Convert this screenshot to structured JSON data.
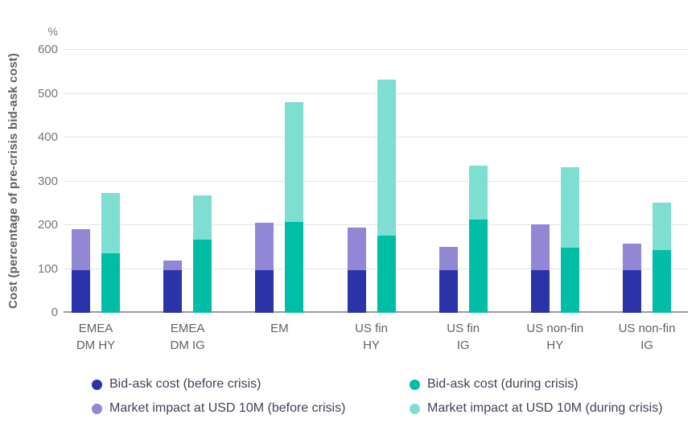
{
  "chart_data": {
    "type": "bar",
    "subtype": "grouped-stacked",
    "title": "",
    "ylabel": "Cost (percentage of pre-crisis bid-ask cost)",
    "xlabel": "",
    "unit": "%",
    "ylim": [
      0,
      600
    ],
    "yticks": [
      0,
      100,
      200,
      300,
      400,
      500,
      600
    ],
    "grid": "horizontal",
    "legend_position": "bottom",
    "categories": [
      {
        "label": "EMEA DM HY",
        "lines": [
          "EMEA",
          "DM HY"
        ]
      },
      {
        "label": "EMEA DM IG",
        "lines": [
          "EMEA",
          "DM IG"
        ]
      },
      {
        "label": "EM",
        "lines": [
          "EM"
        ]
      },
      {
        "label": "US fin HY",
        "lines": [
          "US fin",
          "HY"
        ]
      },
      {
        "label": "US fin IG",
        "lines": [
          "US fin",
          "IG"
        ]
      },
      {
        "label": "US non-fin HY",
        "lines": [
          "US non-fin",
          "HY"
        ]
      },
      {
        "label": "US non-fin IG",
        "lines": [
          "US non-fin",
          "IG"
        ]
      }
    ],
    "series": [
      {
        "name": "Bid-ask cost (before crisis)",
        "stack": "before",
        "color": "#2b33a8",
        "values": [
          98,
          98,
          98,
          97,
          98,
          97,
          97
        ]
      },
      {
        "name": "Market impact at USD 10M (before crisis)",
        "stack": "before",
        "color": "#9287d4",
        "values": [
          92,
          22,
          107,
          97,
          52,
          105,
          60
        ]
      },
      {
        "name": "Bid-ask cost (during crisis)",
        "stack": "during",
        "color": "#00bda6",
        "values": [
          135,
          167,
          208,
          177,
          213,
          148,
          144
        ]
      },
      {
        "name": "Market impact at USD 10M (during crisis)",
        "stack": "during",
        "color": "#7fded2",
        "values": [
          139,
          101,
          273,
          355,
          123,
          184,
          107
        ]
      }
    ],
    "stack_totals": {
      "before": [
        190,
        120,
        205,
        194,
        150,
        202,
        157
      ],
      "during": [
        274,
        268,
        481,
        532,
        336,
        332,
        251
      ]
    }
  },
  "legend": {
    "items": [
      {
        "label": "Bid-ask cost (before crisis)",
        "color": "#2b33a8",
        "col": 0,
        "row": 0
      },
      {
        "label": "Bid-ask cost (during crisis)",
        "color": "#00bda6",
        "col": 1,
        "row": 0
      },
      {
        "label": "Market impact at USD 10M (before crisis)",
        "color": "#9287d4",
        "col": 0,
        "row": 1
      },
      {
        "label": "Market impact at USD 10M (during crisis)",
        "color": "#7fded2",
        "col": 1,
        "row": 1
      }
    ]
  },
  "colors": {
    "background": "#ffffff",
    "gridline": "#e4e4e4",
    "axis_line": "#9b9b9b",
    "tick_text": "#757575",
    "axis_title_text": "#616161",
    "category_text": "#616161",
    "legend_text": "#3f4455"
  }
}
